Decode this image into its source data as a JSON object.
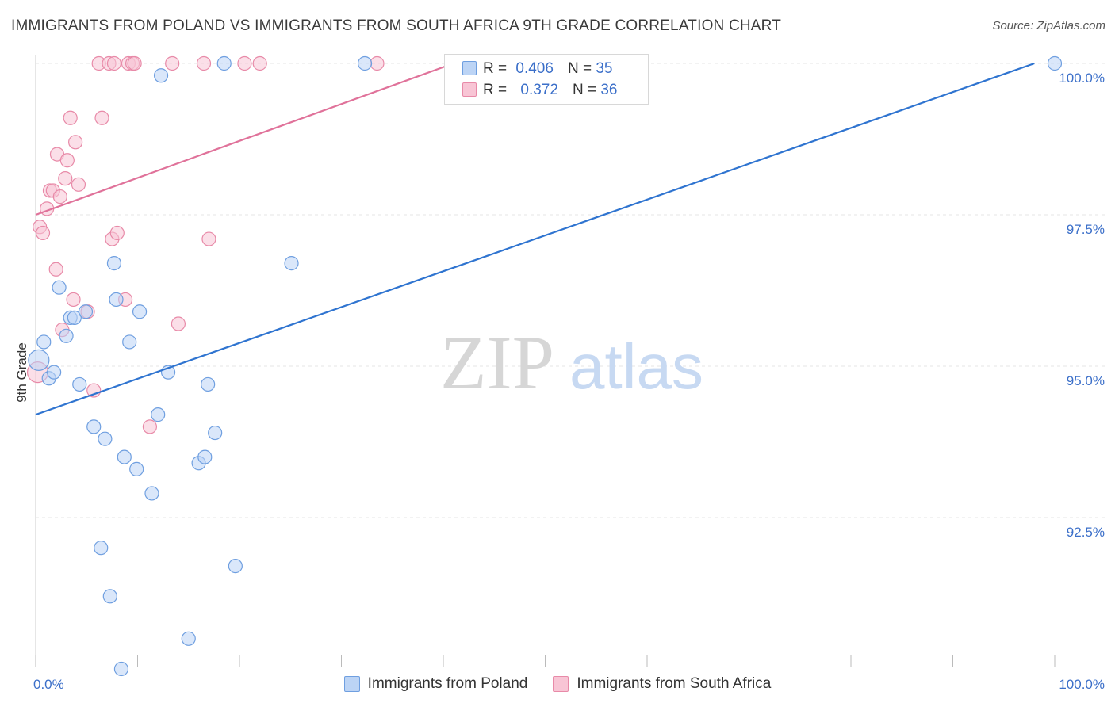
{
  "title": "IMMIGRANTS FROM POLAND VS IMMIGRANTS FROM SOUTH AFRICA 9TH GRADE CORRELATION CHART",
  "source": "Source: ZipAtlas.com",
  "watermark": {
    "zip": "ZIP",
    "atlas": "atlas"
  },
  "legend_top": {
    "r_label": "R =",
    "n_label": "N =",
    "rows": [
      {
        "r": "0.406",
        "n": "35",
        "color": "#6f9fe0",
        "fill": "#bcd4f5"
      },
      {
        "r": "0.372",
        "n": "36",
        "color": "#e88aa8",
        "fill": "#f8c5d5"
      }
    ]
  },
  "colors": {
    "poland_stroke": "#6f9fe0",
    "poland_fill": "#bcd4f5",
    "poland_line": "#2f74d0",
    "sa_stroke": "#e88aa8",
    "sa_fill": "#f8c5d5",
    "sa_line": "#e0729a",
    "axis_text": "#3b6fc9",
    "grid": "#e4e4e4"
  },
  "chart_data": {
    "type": "scatter",
    "title": "IMMIGRANTS FROM POLAND VS IMMIGRANTS FROM SOUTH AFRICA 9TH GRADE CORRELATION CHART",
    "xlabel": "",
    "ylabel": "9th Grade",
    "xlim": [
      0,
      100
    ],
    "ylim": [
      90.0,
      100.25
    ],
    "x_tick_labels": [
      "0.0%",
      "100.0%"
    ],
    "y_ticks": [
      100.0,
      97.5,
      95.0,
      92.5
    ],
    "y_tick_labels": [
      "100.0%",
      "97.5%",
      "95.0%",
      "92.5%"
    ],
    "grid": true,
    "series": [
      {
        "name": "Immigrants from Poland",
        "points": [
          [
            0.3,
            95.1
          ],
          [
            0.8,
            95.4
          ],
          [
            1.3,
            94.8
          ],
          [
            1.8,
            94.9
          ],
          [
            2.3,
            96.3
          ],
          [
            3.0,
            95.5
          ],
          [
            3.4,
            95.8
          ],
          [
            3.8,
            95.8
          ],
          [
            4.3,
            94.7
          ],
          [
            4.9,
            95.9
          ],
          [
            5.7,
            94.0
          ],
          [
            6.4,
            92.0
          ],
          [
            6.8,
            93.8
          ],
          [
            7.3,
            91.2
          ],
          [
            7.7,
            96.7
          ],
          [
            7.9,
            96.1
          ],
          [
            8.4,
            90.0
          ],
          [
            8.7,
            93.5
          ],
          [
            9.2,
            95.4
          ],
          [
            9.9,
            93.3
          ],
          [
            10.2,
            95.9
          ],
          [
            11.4,
            92.9
          ],
          [
            12.0,
            94.2
          ],
          [
            12.3,
            99.8
          ],
          [
            13.0,
            94.9
          ],
          [
            15.0,
            90.5
          ],
          [
            16.0,
            93.4
          ],
          [
            16.6,
            93.5
          ],
          [
            16.9,
            94.7
          ],
          [
            17.6,
            93.9
          ],
          [
            18.5,
            100.0
          ],
          [
            19.6,
            91.7
          ],
          [
            25.1,
            96.7
          ],
          [
            32.3,
            100.0
          ],
          [
            100.0,
            100.0
          ]
        ]
      },
      {
        "name": "Immigrants from South Africa",
        "points": [
          [
            0.2,
            94.9
          ],
          [
            0.4,
            97.3
          ],
          [
            0.7,
            97.2
          ],
          [
            1.1,
            97.6
          ],
          [
            1.4,
            97.9
          ],
          [
            1.7,
            97.9
          ],
          [
            2.0,
            96.6
          ],
          [
            2.1,
            98.5
          ],
          [
            2.4,
            97.8
          ],
          [
            2.6,
            95.6
          ],
          [
            2.9,
            98.1
          ],
          [
            3.1,
            98.4
          ],
          [
            3.4,
            99.1
          ],
          [
            3.7,
            96.1
          ],
          [
            3.9,
            98.7
          ],
          [
            4.2,
            98.0
          ],
          [
            5.1,
            95.9
          ],
          [
            5.7,
            94.6
          ],
          [
            6.2,
            100.0
          ],
          [
            6.5,
            99.1
          ],
          [
            7.2,
            100.0
          ],
          [
            7.5,
            97.1
          ],
          [
            7.7,
            100.0
          ],
          [
            8.0,
            97.2
          ],
          [
            8.8,
            96.1
          ],
          [
            9.1,
            100.0
          ],
          [
            9.5,
            100.0
          ],
          [
            9.7,
            100.0
          ],
          [
            11.2,
            94.0
          ],
          [
            13.4,
            100.0
          ],
          [
            14.0,
            95.7
          ],
          [
            16.5,
            100.0
          ],
          [
            17.0,
            97.1
          ],
          [
            20.5,
            100.0
          ],
          [
            22.0,
            100.0
          ],
          [
            33.5,
            100.0
          ]
        ]
      }
    ],
    "trend_lines": [
      {
        "series": "Immigrants from Poland",
        "x": [
          0,
          98.0
        ],
        "y": [
          94.2,
          100.0
        ]
      },
      {
        "series": "Immigrants from South Africa",
        "x": [
          0,
          41.0
        ],
        "y": [
          97.5,
          100.0
        ]
      }
    ],
    "legend": [
      "Immigrants from Poland",
      "Immigrants from South Africa"
    ]
  }
}
